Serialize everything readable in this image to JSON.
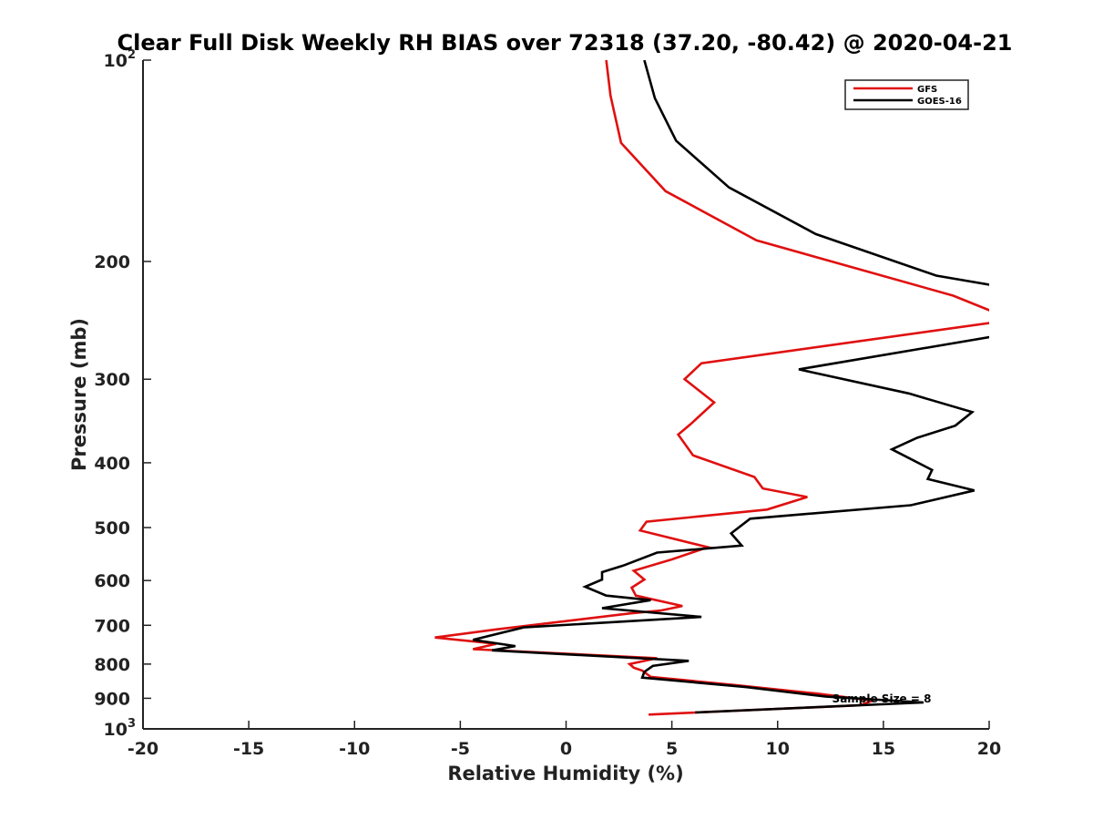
{
  "chart_data": {
    "type": "line",
    "title": "Clear Full Disk Weekly RH BIAS over 72318 (37.20, -80.42) @ 2020-04-21",
    "xlabel": "Relative Humidity (%)",
    "ylabel": "Pressure (mb)",
    "xlim": [
      -20,
      20
    ],
    "ylim": [
      100,
      1000
    ],
    "yscale": "log",
    "y_reversed": true,
    "grid": false,
    "legend_position": "top-right",
    "x_ticks": [
      "-20",
      "-15",
      "-10",
      "-5",
      "0",
      "5",
      "10",
      "15",
      "20"
    ],
    "y_ticks": [
      {
        "value": 100,
        "label": "10",
        "sup": "2"
      },
      {
        "value": 200,
        "label": "200",
        "sup": ""
      },
      {
        "value": 300,
        "label": "300",
        "sup": ""
      },
      {
        "value": 400,
        "label": "400",
        "sup": ""
      },
      {
        "value": 500,
        "label": "500",
        "sup": ""
      },
      {
        "value": 600,
        "label": "600",
        "sup": ""
      },
      {
        "value": 700,
        "label": "700",
        "sup": ""
      },
      {
        "value": 800,
        "label": "800",
        "sup": ""
      },
      {
        "value": 900,
        "label": "900",
        "sup": ""
      },
      {
        "value": 1000,
        "label": "10",
        "sup": "3"
      }
    ],
    "annotation": "Sample Size = 8",
    "series": [
      {
        "name": "GFS",
        "color": "#e01010",
        "points": [
          [
            1.9,
            100
          ],
          [
            2.1,
            113
          ],
          [
            2.6,
            133
          ],
          [
            4.7,
            157
          ],
          [
            9.0,
            186
          ],
          [
            18.3,
            225
          ],
          [
            20.5,
            240
          ],
          [
            20.5,
            246
          ],
          [
            6.4,
            284
          ],
          [
            5.6,
            300
          ],
          [
            7.0,
            325
          ],
          [
            5.9,
            350
          ],
          [
            5.3,
            363
          ],
          [
            6.0,
            390
          ],
          [
            8.9,
            420
          ],
          [
            9.3,
            437
          ],
          [
            11.4,
            450
          ],
          [
            9.5,
            470
          ],
          [
            3.8,
            490
          ],
          [
            3.5,
            505
          ],
          [
            6.7,
            535
          ],
          [
            5.0,
            558
          ],
          [
            3.2,
            580
          ],
          [
            3.7,
            598
          ],
          [
            3.1,
            615
          ],
          [
            3.3,
            632
          ],
          [
            5.5,
            655
          ],
          [
            4.5,
            665
          ],
          [
            3.0,
            672
          ],
          [
            -3.3,
            710
          ],
          [
            -6.2,
            730
          ],
          [
            -3.3,
            746
          ],
          [
            -4.4,
            760
          ],
          [
            4.3,
            784
          ],
          [
            3.0,
            800
          ],
          [
            3.2,
            810
          ],
          [
            3.6,
            818
          ],
          [
            4.0,
            836
          ],
          [
            8.0,
            860
          ],
          [
            11.8,
            885
          ],
          [
            14.5,
            907
          ],
          [
            13.9,
            922
          ],
          [
            3.9,
            952
          ]
        ]
      },
      {
        "name": "GOES-16",
        "color": "#000000",
        "points": [
          [
            3.7,
            100
          ],
          [
            4.2,
            114
          ],
          [
            5.2,
            132
          ],
          [
            7.7,
            155
          ],
          [
            11.8,
            182
          ],
          [
            17.5,
            210
          ],
          [
            20.5,
            218
          ],
          [
            20.5,
            258
          ],
          [
            11.0,
            290
          ],
          [
            16.2,
            315
          ],
          [
            19.2,
            336
          ],
          [
            18.4,
            352
          ],
          [
            16.6,
            367
          ],
          [
            15.4,
            382
          ],
          [
            17.3,
            410
          ],
          [
            17.1,
            423
          ],
          [
            19.3,
            440
          ],
          [
            16.3,
            463
          ],
          [
            8.7,
            485
          ],
          [
            7.8,
            510
          ],
          [
            8.3,
            532
          ],
          [
            4.3,
            545
          ],
          [
            2.7,
            570
          ],
          [
            1.7,
            583
          ],
          [
            1.7,
            598
          ],
          [
            0.9,
            613
          ],
          [
            1.9,
            632
          ],
          [
            4.0,
            642
          ],
          [
            1.7,
            660
          ],
          [
            6.4,
            680
          ],
          [
            -2.0,
            705
          ],
          [
            -4.4,
            736
          ],
          [
            -2.4,
            752
          ],
          [
            -3.5,
            763
          ],
          [
            5.8,
            791
          ],
          [
            4.1,
            805
          ],
          [
            3.7,
            822
          ],
          [
            3.6,
            838
          ],
          [
            8.5,
            866
          ],
          [
            12.3,
            895
          ],
          [
            16.9,
            913
          ],
          [
            6.1,
            945
          ]
        ]
      }
    ]
  }
}
